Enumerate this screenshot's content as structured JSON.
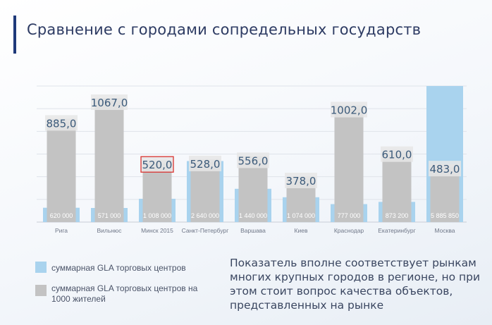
{
  "title": "Сравнение с городами сопредельных государств",
  "chart_data": {
    "type": "bar",
    "categories": [
      "Рига",
      "Вильнюс",
      "Минск 2015",
      "Санкт-Петербург",
      "Варшава",
      "Киев",
      "Краснодар",
      "Екатеринбург",
      "Москва"
    ],
    "series": [
      {
        "name": "суммарная GLA торговых центров",
        "values": [
          620000,
          571000,
          1008000,
          2640000,
          1440000,
          1074000,
          777000,
          873200,
          5885850
        ],
        "labels": [
          "620 000",
          "571 000",
          "1 008 000",
          "2 640 000",
          "1 440 000",
          "1 074 000",
          "777 000",
          "873 200",
          "5 885 850"
        ],
        "color": "#a9d3ee"
      },
      {
        "name": "суммарная GLA торговых центров на 1000 жителей",
        "values": [
          885.0,
          1067.0,
          520.0,
          528.0,
          556.0,
          378.0,
          1002.0,
          610.0,
          483.0
        ],
        "labels": [
          "885,0",
          "1067,0",
          "520,0",
          "528,0",
          "556,0",
          "378,0",
          "1002,0",
          "610,0",
          "483,0"
        ],
        "color": "#c3c3c3"
      }
    ],
    "highlighted_category": "Минск 2015",
    "grid": true,
    "legend_position": "bottom-left"
  },
  "legend": [
    {
      "label": "суммарная GLA торговых центров",
      "color": "#a9d3ee"
    },
    {
      "label": "суммарная GLA торговых центров на 1000 жителей",
      "color": "#c3c3c3"
    }
  ],
  "note": "Показатель вполне соответствует рынкам многих крупных городов в регионе, но при этом стоит вопрос качества объектов, представленных на рынке"
}
